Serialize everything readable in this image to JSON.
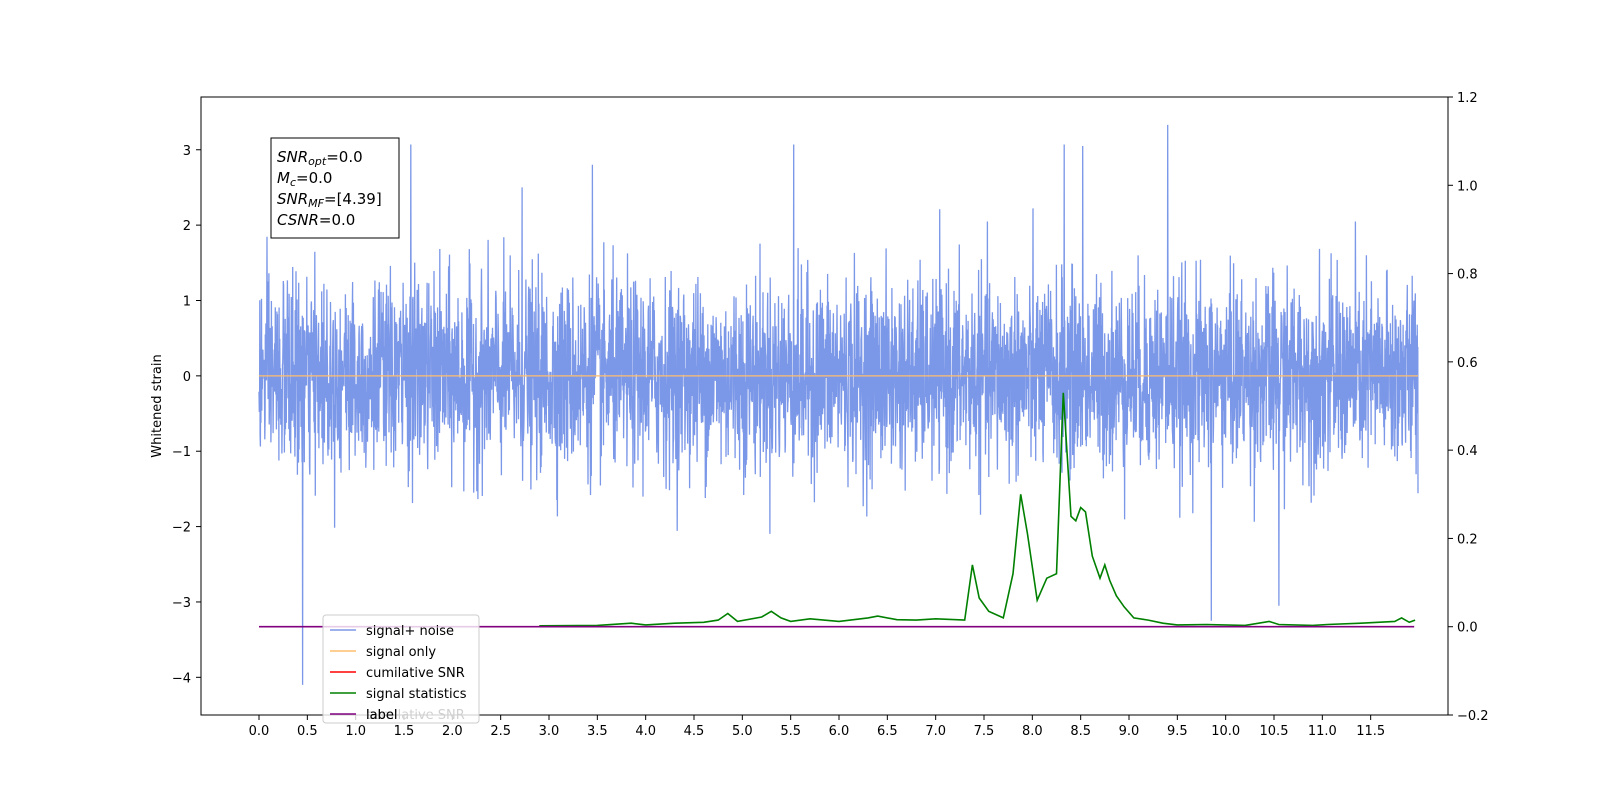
{
  "chart_data": {
    "type": "line",
    "title": "",
    "xlabel": "",
    "ylabel": "Whitened strain",
    "xlim": [
      -0.6,
      12.3
    ],
    "ylim": [
      -4.5,
      3.7
    ],
    "y2lim": [
      -0.2,
      1.2
    ],
    "grid": false,
    "x_ticks": [
      0.0,
      0.5,
      1.0,
      1.5,
      2.0,
      2.5,
      3.0,
      3.5,
      4.0,
      4.5,
      5.0,
      5.5,
      6.0,
      6.5,
      7.0,
      7.5,
      8.0,
      8.5,
      9.0,
      9.5,
      10.0,
      10.5,
      11.0,
      11.5
    ],
    "x_tick_labels": [
      "0.0",
      "0.5",
      "1.0",
      "1.5",
      "2.0",
      "2.5",
      "3.0",
      "3.5",
      "4.0",
      "4.5",
      "5.0",
      "5.5",
      "6.0",
      "6.5",
      "7.0",
      "7.5",
      "8.0",
      "8.5",
      "9.0",
      "9.5",
      "10.0",
      "10.5",
      "11.0",
      "11.5"
    ],
    "y_ticks": [
      -4,
      -3,
      -2,
      -1,
      0,
      1,
      2,
      3
    ],
    "y_tick_labels": [
      "−4",
      "−3",
      "−2",
      "−1",
      "0",
      "1",
      "2",
      "3"
    ],
    "y2_ticks": [
      -0.2,
      0.0,
      0.2,
      0.4,
      0.6,
      0.8,
      1.0,
      1.2
    ],
    "y2_tick_labels": [
      "−0.2",
      "0.0",
      "0.2",
      "0.4",
      "0.6",
      "0.8",
      "1.0",
      "1.2"
    ],
    "legend_position": "lower-left",
    "legend": [
      "signal+ noise",
      "signal only",
      "cumilative SNR",
      "signal statistics",
      "label"
    ],
    "legend_overlap_text": "cumilative SNR",
    "annotation": {
      "lines": [
        {
          "sym": "SNR",
          "sub": "opt",
          "rest": "=0.0"
        },
        {
          "sym": "M",
          "sub": "c",
          "rest": "=0.0"
        },
        {
          "sym": "SNR",
          "sub": "MF",
          "rest": "=[4.39]"
        },
        {
          "sym": "CSNR",
          "sub": "",
          "rest": "=0.0"
        }
      ]
    },
    "series": [
      {
        "name": "signal+ noise",
        "color": "#7b97e8",
        "axis": "left",
        "x_range": [
          0.0,
          11.99
        ],
        "envelope": "dense whitened noise, roughly ±1.7 with spikes",
        "peaks_x": [
          0.45,
          1.57,
          2.72,
          3.45,
          5.53,
          8.33,
          8.52,
          9.4,
          9.85,
          10.55
        ],
        "peaks_y": [
          -4.1,
          3.07,
          2.5,
          2.8,
          3.07,
          3.07,
          3.05,
          3.33,
          -3.25,
          -3.05
        ]
      },
      {
        "name": "signal only",
        "color": "#ffbe6e",
        "axis": "left",
        "x": [
          0.0,
          11.99
        ],
        "y": [
          0.0,
          0.0
        ]
      },
      {
        "name": "cumilative SNR",
        "color": "#ff0000",
        "axis": "right",
        "x": [],
        "y": []
      },
      {
        "name": "signal statistics",
        "color": "#008000",
        "axis": "right",
        "x": [
          2.9,
          3.5,
          3.85,
          4.0,
          4.3,
          4.6,
          4.75,
          4.85,
          4.95,
          5.2,
          5.3,
          5.4,
          5.5,
          5.7,
          6.0,
          6.3,
          6.4,
          6.6,
          6.8,
          7.0,
          7.3,
          7.38,
          7.45,
          7.55,
          7.7,
          7.8,
          7.88,
          7.95,
          8.05,
          8.15,
          8.25,
          8.32,
          8.4,
          8.45,
          8.5,
          8.55,
          8.62,
          8.7,
          8.75,
          8.8,
          8.87,
          8.95,
          9.05,
          9.2,
          9.35,
          9.5,
          9.8,
          10.2,
          10.45,
          10.55,
          10.9,
          11.05,
          11.4,
          11.75,
          11.82,
          11.9,
          11.96
        ],
        "y": [
          0.002,
          0.003,
          0.008,
          0.004,
          0.008,
          0.01,
          0.015,
          0.03,
          0.012,
          0.022,
          0.035,
          0.02,
          0.012,
          0.018,
          0.012,
          0.02,
          0.024,
          0.016,
          0.015,
          0.018,
          0.015,
          0.14,
          0.065,
          0.035,
          0.02,
          0.12,
          0.3,
          0.21,
          0.06,
          0.11,
          0.12,
          0.53,
          0.25,
          0.24,
          0.27,
          0.26,
          0.16,
          0.11,
          0.14,
          0.105,
          0.07,
          0.045,
          0.02,
          0.015,
          0.008,
          0.004,
          0.005,
          0.003,
          0.012,
          0.005,
          0.003,
          0.005,
          0.008,
          0.012,
          0.02,
          0.01,
          0.015
        ]
      },
      {
        "name": "label",
        "color": "#800080",
        "axis": "right",
        "x": [
          0.0,
          11.95
        ],
        "y": [
          0.0,
          0.0
        ]
      }
    ]
  }
}
